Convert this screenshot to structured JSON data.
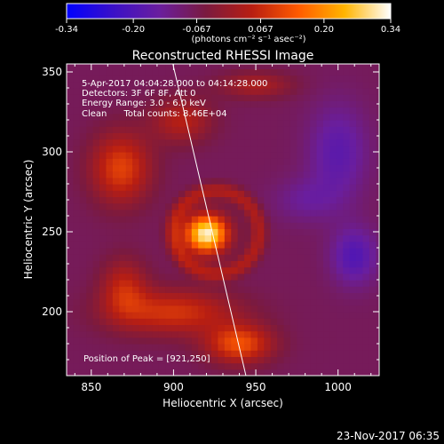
{
  "colorbar": {
    "ticks": [
      -0.34,
      -0.2,
      -0.067,
      0.067,
      0.2,
      0.34
    ],
    "tick_labels": [
      "-0.34",
      "-0.20",
      "-0.067",
      "0.067",
      "0.20",
      "0.34"
    ],
    "units_label": "(photons cm⁻² s⁻¹ asec⁻²)",
    "colors": [
      "#0000ff",
      "#3a10c8",
      "#6a1e9e",
      "#7a1a40",
      "#b81e12",
      "#ff5a00",
      "#ffb400",
      "#ffffff"
    ]
  },
  "chart_data": {
    "type": "heatmap",
    "title": "Reconstructed RHESSI Image",
    "xlabel": "Heliocentric X (arcsec)",
    "ylabel": "Heliocentric Y (arcsec)",
    "xlim": [
      835,
      1025
    ],
    "ylim": [
      160,
      355
    ],
    "xticks": [
      850,
      900,
      950,
      1000
    ],
    "yticks": [
      200,
      250,
      300,
      350
    ],
    "xtick_labels": [
      "850",
      "900",
      "950",
      "1000"
    ],
    "ytick_labels": [
      "200",
      "250",
      "300",
      "350"
    ],
    "annotations": [
      "5-Apr-2017 04:04:28.000 to 04:14:28.000",
      "Detectors: 3F 6F 8F, Att 0",
      "Energy Range: 3.0 - 6.0 keV",
      "Clean      Total counts: 8.46E+04"
    ],
    "peak_label": "Position of Peak = [921,250]",
    "limb_line": [
      [
        898,
        362
      ],
      [
        944,
        160
      ]
    ],
    "sources": [
      {
        "kind": "core",
        "x": 920,
        "y": 249,
        "sx": 13,
        "sy": 12,
        "amp": 0.4
      },
      {
        "kind": "ring",
        "x": 926,
        "y": 250,
        "r": 26,
        "w": 5,
        "amp": 0.11
      },
      {
        "kind": "blob",
        "x": 900,
        "y": 200,
        "sx": 38,
        "sy": 14,
        "amp": 0.16
      },
      {
        "kind": "blob",
        "x": 870,
        "y": 215,
        "sx": 14,
        "sy": 18,
        "amp": 0.13
      },
      {
        "kind": "blob",
        "x": 940,
        "y": 180,
        "sx": 20,
        "sy": 12,
        "amp": 0.2
      },
      {
        "kind": "blob",
        "x": 868,
        "y": 290,
        "sx": 18,
        "sy": 22,
        "amp": 0.18
      },
      {
        "kind": "blob",
        "x": 905,
        "y": 320,
        "sx": 18,
        "sy": 14,
        "amp": 0.12
      },
      {
        "kind": "blob",
        "x": 950,
        "y": 342,
        "sx": 22,
        "sy": 8,
        "amp": 0.1
      },
      {
        "kind": "blob",
        "x": 1000,
        "y": 300,
        "sx": 18,
        "sy": 30,
        "amp": -0.1
      },
      {
        "kind": "blob",
        "x": 1010,
        "y": 235,
        "sx": 14,
        "sy": 18,
        "amp": -0.12
      },
      {
        "kind": "blob",
        "x": 980,
        "y": 270,
        "sx": 20,
        "sy": 14,
        "amp": -0.06
      }
    ],
    "background": -0.075
  },
  "footer": {
    "date": "23-Nov-2017 06:35"
  }
}
